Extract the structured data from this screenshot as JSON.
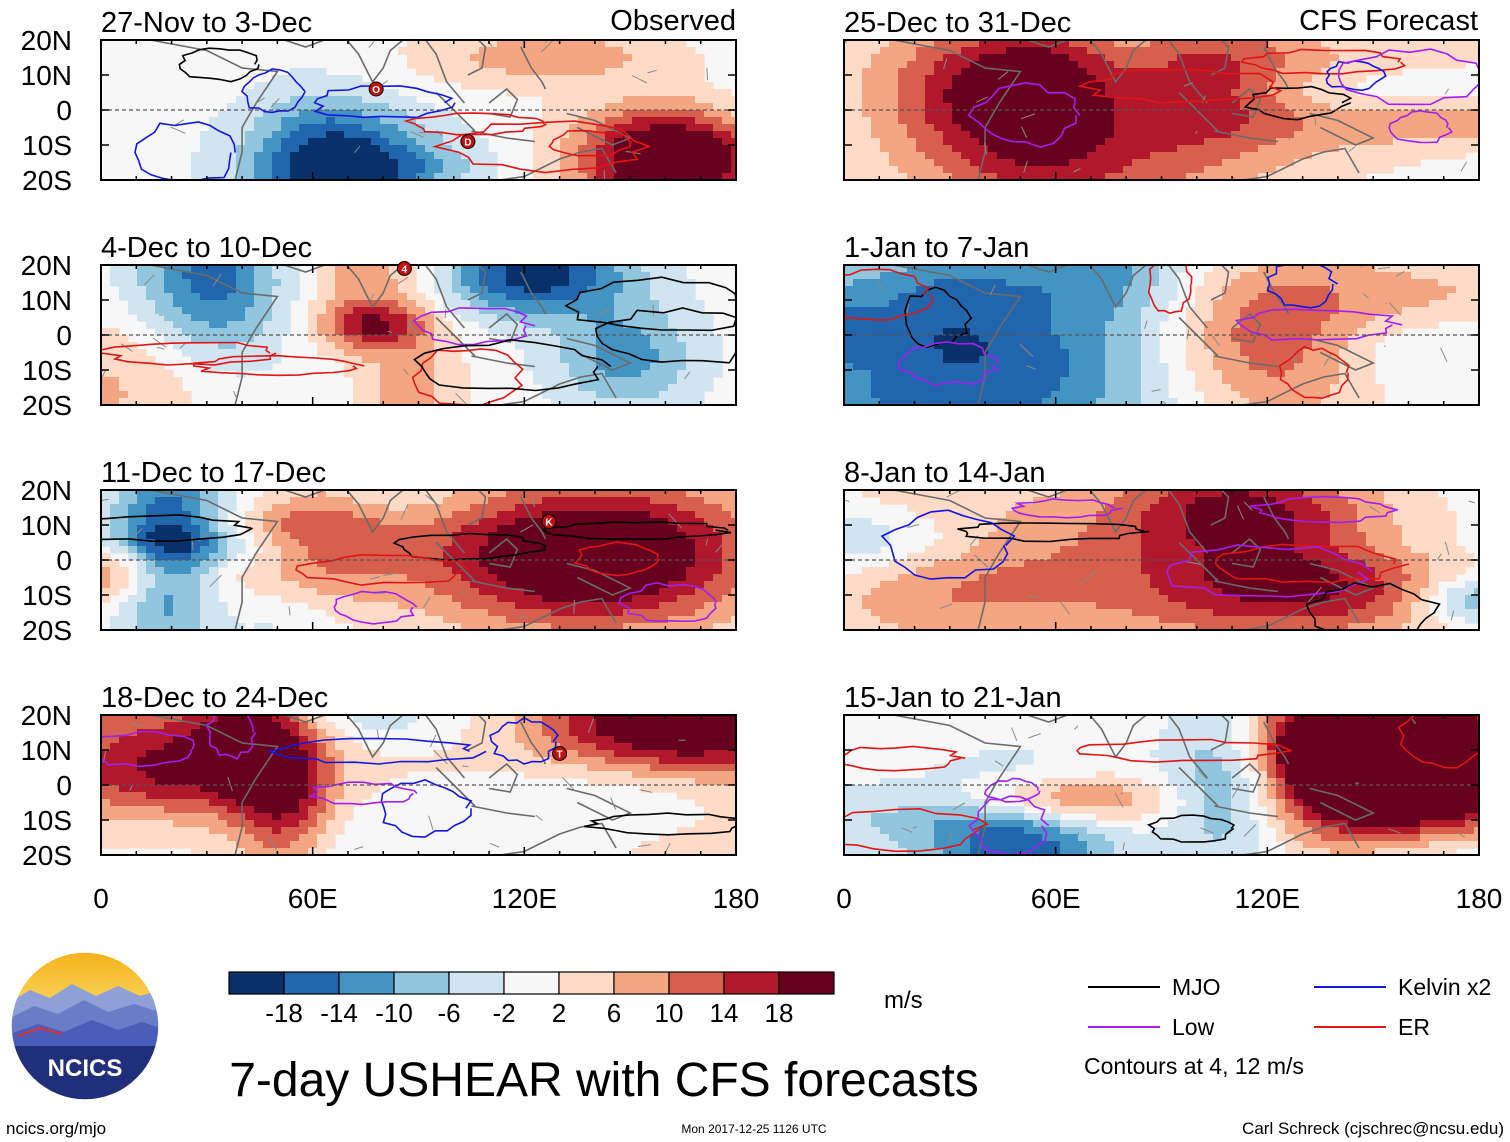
{
  "header": {
    "left_label": "Observed",
    "right_label": "CFS Forecast"
  },
  "chart_data": {
    "type": "heatmap",
    "variable": "7-day USHEAR",
    "title": "7-day USHEAR with CFS forecasts",
    "units": "m/s",
    "x_axis": {
      "ticks": [
        "0",
        "60E",
        "120E",
        "180"
      ],
      "range": [
        0,
        180
      ]
    },
    "y_axis": {
      "ticks": [
        "20N",
        "10N",
        "0",
        "10S",
        "20S"
      ],
      "range": [
        -20,
        20
      ]
    },
    "colorbar": {
      "tick_labels": [
        "-18",
        "-14",
        "-10",
        "-6",
        "-2",
        "2",
        "6",
        "10",
        "14",
        "18"
      ],
      "colors": [
        "#08306b",
        "#2166ac",
        "#4393c3",
        "#92c5de",
        "#d1e5f0",
        "#f7f7f7",
        "#fddbc7",
        "#f4a582",
        "#d6604d",
        "#b2182b",
        "#67001f"
      ]
    },
    "panels": [
      {
        "column": "Observed",
        "period": "27-Nov to 3-Dec",
        "storms": [
          {
            "label": "O",
            "lon": 78,
            "lat": 6
          },
          {
            "label": "D",
            "lon": 104,
            "lat": -9
          }
        ]
      },
      {
        "column": "Observed",
        "period": "4-Dec to 10-Dec",
        "storms": [
          {
            "label": "4",
            "lon": 86,
            "lat": 19
          }
        ]
      },
      {
        "column": "Observed",
        "period": "11-Dec to 17-Dec",
        "storms": [
          {
            "label": "K",
            "lon": 127,
            "lat": 11
          }
        ]
      },
      {
        "column": "Observed",
        "period": "18-Dec to 24-Dec",
        "storms": [
          {
            "label": "T",
            "lon": 130,
            "lat": 9
          }
        ]
      },
      {
        "column": "CFS Forecast",
        "period": "25-Dec to 31-Dec",
        "storms": []
      },
      {
        "column": "CFS Forecast",
        "period": "1-Jan to 7-Jan",
        "storms": []
      },
      {
        "column": "CFS Forecast",
        "period": "8-Jan to 14-Jan",
        "storms": []
      },
      {
        "column": "CFS Forecast",
        "period": "15-Jan to 21-Jan",
        "storms": []
      }
    ],
    "contour_legend": {
      "items": [
        {
          "label": "MJO",
          "color": "#000000"
        },
        {
          "label": "Kelvin x2",
          "color": "#1515e0"
        },
        {
          "label": "Low",
          "color": "#a020f0"
        },
        {
          "label": "ER",
          "color": "#e01515"
        }
      ],
      "note": "Contours at 4, 12 m/s"
    }
  },
  "branding": {
    "logo_text": "NCICS",
    "site": "ncics.org/mjo",
    "timestamp": "Mon 2017-12-25 1126 UTC",
    "author": "Carl Schreck (cjschrec@ncsu.edu)"
  }
}
